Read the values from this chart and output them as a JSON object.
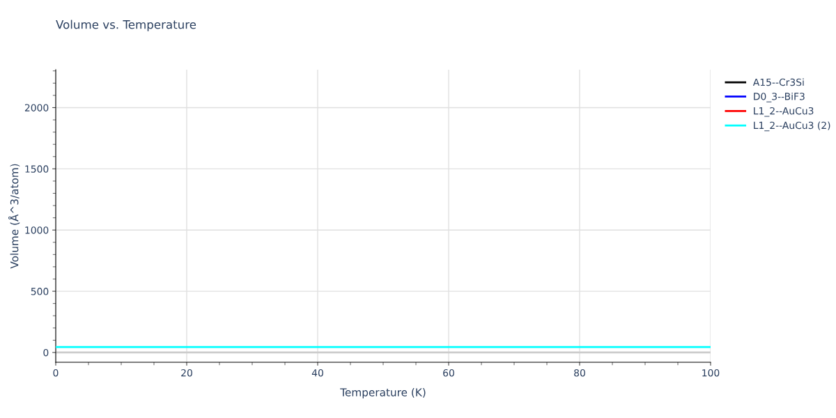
{
  "chart_data": {
    "type": "line",
    "title": "Volume vs. Temperature",
    "xlabel": "Temperature (K)",
    "ylabel": "Volume (Å^3/atom)",
    "x": [
      0,
      100
    ],
    "series": [
      {
        "name": "A15--Cr3Si",
        "color": "#000000",
        "values": [
          null,
          null
        ]
      },
      {
        "name": "D0_3--BiF3",
        "color": "#0000ff",
        "values": [
          null,
          null
        ]
      },
      {
        "name": "L1_2--AuCu3",
        "color": "#ff0000",
        "values": [
          null,
          null
        ]
      },
      {
        "name": "L1_2--AuCu3 (2)",
        "color": "#00ffff",
        "values": [
          45,
          45
        ]
      }
    ],
    "xlim": [
      0,
      100
    ],
    "xticks": [
      0,
      20,
      40,
      60,
      80,
      100
    ],
    "ylim": [
      -80,
      2310
    ],
    "yticks": [
      0,
      500,
      1000,
      1500,
      2000
    ],
    "grid": true,
    "legend": "top right",
    "marker": "none",
    "line_style": "solid"
  }
}
